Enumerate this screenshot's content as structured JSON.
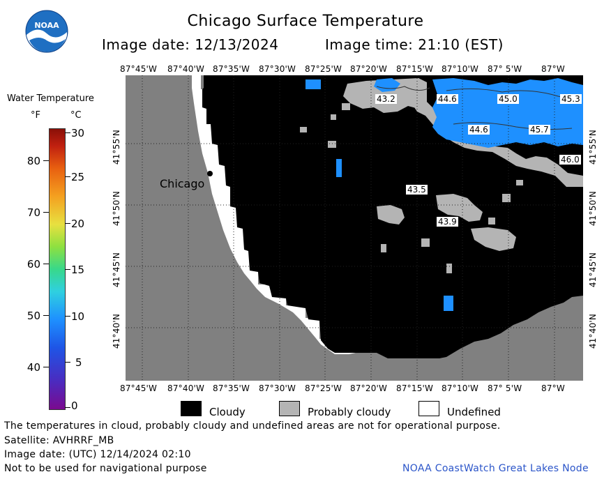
{
  "header": {
    "title": "Chicago Surface Temperature",
    "image_date": "Image date: 12/13/2024",
    "image_time": "Image time: 21:10 (EST)"
  },
  "logo": {
    "text": "NOAA"
  },
  "colorbar": {
    "title": "Water Temperature",
    "unit_f": "°F",
    "unit_c": "°C",
    "f_ticks": [
      "80",
      "70",
      "60",
      "50",
      "40"
    ],
    "c_ticks": [
      "30",
      "25",
      "20",
      "15",
      "10",
      "5",
      "0"
    ]
  },
  "map": {
    "lon_labels": [
      "87°45'W",
      "87°40'W",
      "87°35'W",
      "87°30'W",
      "87°25'W",
      "87°20'W",
      "87°15'W",
      "87°10'W",
      "87° 5'W",
      "87°W"
    ],
    "lat_labels": [
      "41°55'N",
      "41°50'N",
      "41°45'N",
      "41°40'N"
    ],
    "city_label": "Chicago",
    "temperature_labels": [
      "43.2",
      "44.6",
      "45.0",
      "45.3",
      "44.6",
      "45.7",
      "46.0",
      "43.5",
      "43.9"
    ]
  },
  "key": {
    "cloudy": "Cloudy",
    "probably_cloudy": "Probably cloudy",
    "undefined": "Undefined"
  },
  "footer": {
    "disclaimer": "The temperatures in cloud, probably cloudy and undefined areas are not for operational purpose.",
    "satellite": "Satellite: AVHRRF_MB",
    "utc_date": "Image date: (UTC) 12/14/2024  02:10",
    "navigation": "Not to be used for navigational purpose",
    "credit": "NOAA CoastWatch Great Lakes Node"
  },
  "colors": {
    "land": "#808080",
    "cloudy": "#000000",
    "probably_cloudy": "#b4b4b4",
    "water": "#1e90ff",
    "credit": "#2b55c9"
  }
}
